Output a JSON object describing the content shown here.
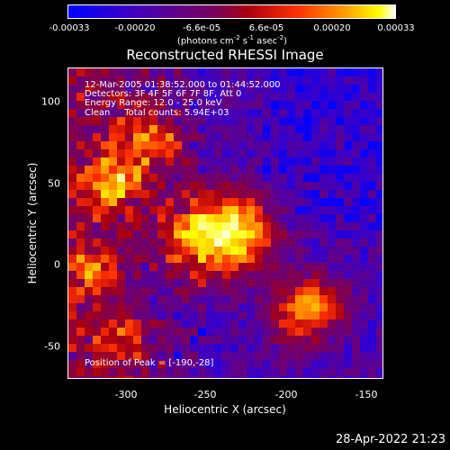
{
  "colorbar": {
    "ticks": [
      "-0.00033",
      "-0.00020",
      "-6.6e-05",
      "6.6e-05",
      "0.00020",
      "0.00033"
    ],
    "unit_main": "(photons cm",
    "unit_sup1": "-2",
    "unit_mid": " s",
    "unit_sup2": "-1",
    "unit_tail": " asec",
    "unit_sup3": "-2",
    "unit_close": ")"
  },
  "title": "Reconstructed RHESSI Image",
  "annotations": {
    "time": "12-Mar-2005 01:38:52.000 to 01:44:52.000",
    "detectors": "Detectors: 3F 4F 5F 6F 7F 8F, Att 0",
    "energy": "Energy Range: 12.0 - 25.0 keV",
    "clean": "Clean     Total counts: 5.94E+03",
    "peak": "Position of Peak = [-190,-28]"
  },
  "axes": {
    "xlabel": "Heliocentric X (arcsec)",
    "ylabel": "Heliocentric Y (arcsec)",
    "xticks": [
      "-300",
      "-250",
      "-200",
      "-150"
    ],
    "yticks": [
      "100",
      "50",
      "0",
      "-50"
    ]
  },
  "timestamp": "28-Apr-2022 21:23",
  "colors": {
    "colormap": [
      "#0000ff",
      "#3a00c8",
      "#60008a",
      "#7a005a",
      "#aa0010",
      "#ff3000",
      "#ffa000",
      "#ffff00",
      "#ffffff"
    ]
  }
}
